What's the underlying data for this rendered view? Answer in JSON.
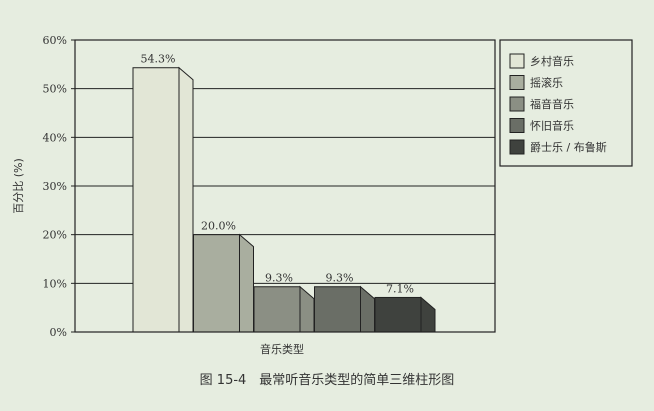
{
  "chart_data": {
    "type": "bar",
    "categories": [
      "乡村音乐",
      "摇滚乐",
      "福音音乐",
      "怀旧音乐",
      "爵士乐 / 布鲁斯"
    ],
    "values": [
      54.3,
      20.0,
      9.3,
      9.3,
      7.1
    ],
    "data_labels": [
      "54.3%",
      "20.0%",
      "9.3%",
      "9.3%",
      "7.1%"
    ],
    "colors": [
      "#e2e6d6",
      "#a9ae9f",
      "#8b8f84",
      "#6a6e66",
      "#3f423e"
    ],
    "ylim": [
      0,
      60
    ],
    "y_ticks": [
      {
        "value": 0,
        "label": "0%"
      },
      {
        "value": 10,
        "label": "10%"
      },
      {
        "value": 20,
        "label": "20%"
      },
      {
        "value": 30,
        "label": "30%"
      },
      {
        "value": 40,
        "label": "40%"
      },
      {
        "value": 50,
        "label": "50%"
      },
      {
        "value": 60,
        "label": "60%"
      }
    ],
    "xlabel": "音乐类型",
    "ylabel": "百分比 (%)",
    "grid": true,
    "legend_position": "right",
    "style": "3d"
  },
  "caption": "图 15-4　最常听音乐类型的简单三维柱形图"
}
